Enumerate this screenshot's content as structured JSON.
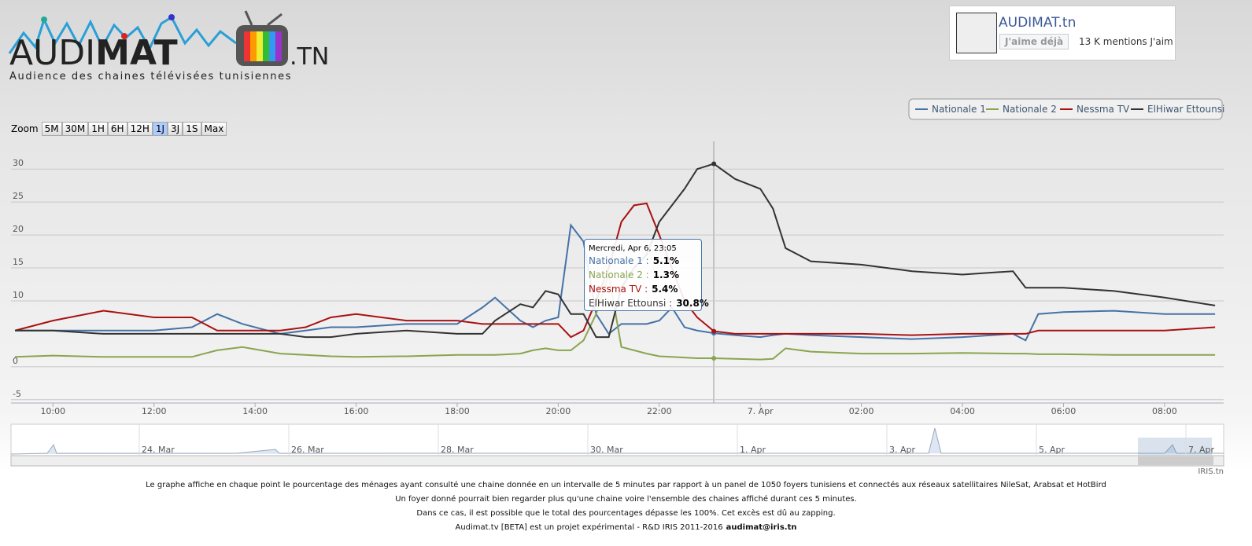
{
  "header": {
    "logo_left": "AUDI",
    "logo_bold": "MAT",
    "logo_suffix": ".TN",
    "tagline": "Audience des chaines télévisées tunisiennes"
  },
  "facebook": {
    "name": "AUDIMAT.tn",
    "button": "J'aime déjà",
    "count": "13 K mentions J'aim"
  },
  "zoom": {
    "label": "Zoom",
    "buttons": [
      "5M",
      "30M",
      "1H",
      "6H",
      "12H",
      "1J",
      "3J",
      "1S",
      "Max"
    ],
    "active": "1J"
  },
  "chart_data": {
    "type": "line",
    "x": [
      9.25,
      10,
      11,
      12,
      12.75,
      13.25,
      13.75,
      14.5,
      15,
      15.5,
      16,
      17,
      18,
      18.5,
      18.75,
      19.25,
      19.5,
      19.75,
      20,
      20.25,
      20.5,
      20.75,
      21,
      21.25,
      21.5,
      21.75,
      22,
      22.25,
      22.5,
      22.75,
      23.08,
      23.5,
      24,
      24.25,
      24.5,
      25,
      26,
      27,
      28,
      29,
      29.25,
      29.5,
      30,
      31,
      32,
      33
    ],
    "series": [
      {
        "name": "Nationale 1",
        "color": "#4572a7",
        "values": [
          5.5,
          5.5,
          5.5,
          5.5,
          6,
          8,
          6.5,
          5,
          5.5,
          6,
          6,
          6.5,
          6.5,
          9,
          10.5,
          7,
          6,
          7,
          7.5,
          21.5,
          19,
          8,
          5,
          6.5,
          6.5,
          6.5,
          7,
          9,
          6,
          5.5,
          5.1,
          4.8,
          4.5,
          4.8,
          5,
          4.8,
          4.5,
          4.2,
          4.5,
          5,
          4,
          8,
          8.3,
          8.5,
          8,
          8
        ]
      },
      {
        "name": "Nationale 2",
        "color": "#89a54e",
        "values": [
          1.5,
          1.7,
          1.5,
          1.5,
          1.5,
          2.5,
          3,
          2,
          1.8,
          1.6,
          1.5,
          1.6,
          1.8,
          1.8,
          1.8,
          2,
          2.5,
          2.8,
          2.5,
          2.5,
          4,
          8,
          14,
          3,
          2.5,
          2,
          1.6,
          1.5,
          1.4,
          1.3,
          1.3,
          1.2,
          1.1,
          1.2,
          2.8,
          2.3,
          2,
          2,
          2.1,
          2,
          2,
          1.9,
          1.9,
          1.8,
          1.8,
          1.8
        ]
      },
      {
        "name": "Nessma TV",
        "color": "#aa1111",
        "values": [
          5.5,
          7,
          8.5,
          7.5,
          7.5,
          5.5,
          5.5,
          5.5,
          6,
          7.5,
          8,
          7,
          7,
          6.5,
          6.5,
          6.5,
          6.5,
          6.5,
          6.5,
          4.5,
          5.5,
          10,
          15,
          22,
          24.5,
          24.8,
          20,
          15,
          10,
          7.5,
          5.4,
          5,
          5,
          5,
          5,
          5,
          5,
          4.8,
          5,
          5,
          5,
          5.5,
          5.5,
          5.5,
          5.5,
          6
        ]
      },
      {
        "name": "ElHiwar Ettounsi",
        "color": "#333333",
        "values": [
          5.5,
          5.5,
          5,
          5,
          5,
          5,
          5,
          5,
          4.5,
          4.5,
          5,
          5.5,
          5,
          5,
          7,
          9.5,
          9,
          11.5,
          11,
          8,
          8,
          4.5,
          4.5,
          12,
          15,
          17,
          22,
          24.5,
          27,
          30,
          30.8,
          28.5,
          27,
          24,
          18,
          16,
          15.5,
          14.5,
          14,
          14.5,
          12,
          12,
          12,
          11.5,
          10.5,
          9.3
        ]
      }
    ],
    "xlim": [
      9.17,
      33.17
    ],
    "xticks": [
      {
        "value": 10,
        "label": "10:00"
      },
      {
        "value": 12,
        "label": "12:00"
      },
      {
        "value": 14,
        "label": "14:00"
      },
      {
        "value": 16,
        "label": "16:00"
      },
      {
        "value": 18,
        "label": "18:00"
      },
      {
        "value": 20,
        "label": "20:00"
      },
      {
        "value": 22,
        "label": "22:00"
      },
      {
        "value": 24,
        "label": "7. Apr"
      },
      {
        "value": 26,
        "label": "02:00"
      },
      {
        "value": 28,
        "label": "04:00"
      },
      {
        "value": 30,
        "label": "06:00"
      },
      {
        "value": 32,
        "label": "08:00"
      }
    ],
    "ylim": [
      -5.5,
      34.2
    ],
    "yticks": [
      -5,
      0,
      10,
      15,
      20,
      25,
      30
    ],
    "grid": true,
    "legend": "top-right",
    "tooltip": {
      "title": "Mercredi, Apr 6, 23:05",
      "items": [
        {
          "label": "Nationale 1 :",
          "value": "5.1%"
        },
        {
          "label": "Nationale 2 :",
          "value": "1.3%"
        },
        {
          "label": "Nessma TV :",
          "value": "5.4%"
        },
        {
          "label": "ElHiwar Ettounsi :",
          "value": "30.8%"
        }
      ]
    },
    "navigator_labels": [
      "24. Mar",
      "26. Mar",
      "28. Mar",
      "30. Mar",
      "1. Apr",
      "3. Apr",
      "5. Apr",
      "7. Apr"
    ]
  },
  "credit": "IRIS.tn",
  "footer": [
    "Le graphe affiche en chaque point le pourcentage des ménages ayant consulté une chaine donnée en un intervalle de 5 minutes par rapport à un panel de 1050 foyers tunisiens et connectés aux réseaux satellitaires NileSat, Arabsat et HotBird",
    "Un foyer donné pourrait bien regarder plus qu'une chaine voire l'ensemble des chaines affiché durant ces 5 minutes.",
    "Dans ce cas, il est possible que le total des pourcentages dépasse les 100%. Cet excès est dû au zapping."
  ],
  "footer_last": "Audimat.tv [BETA] est un projet expérimental - R&D IRIS 2011-2016",
  "email": "audimat@iris.tn"
}
